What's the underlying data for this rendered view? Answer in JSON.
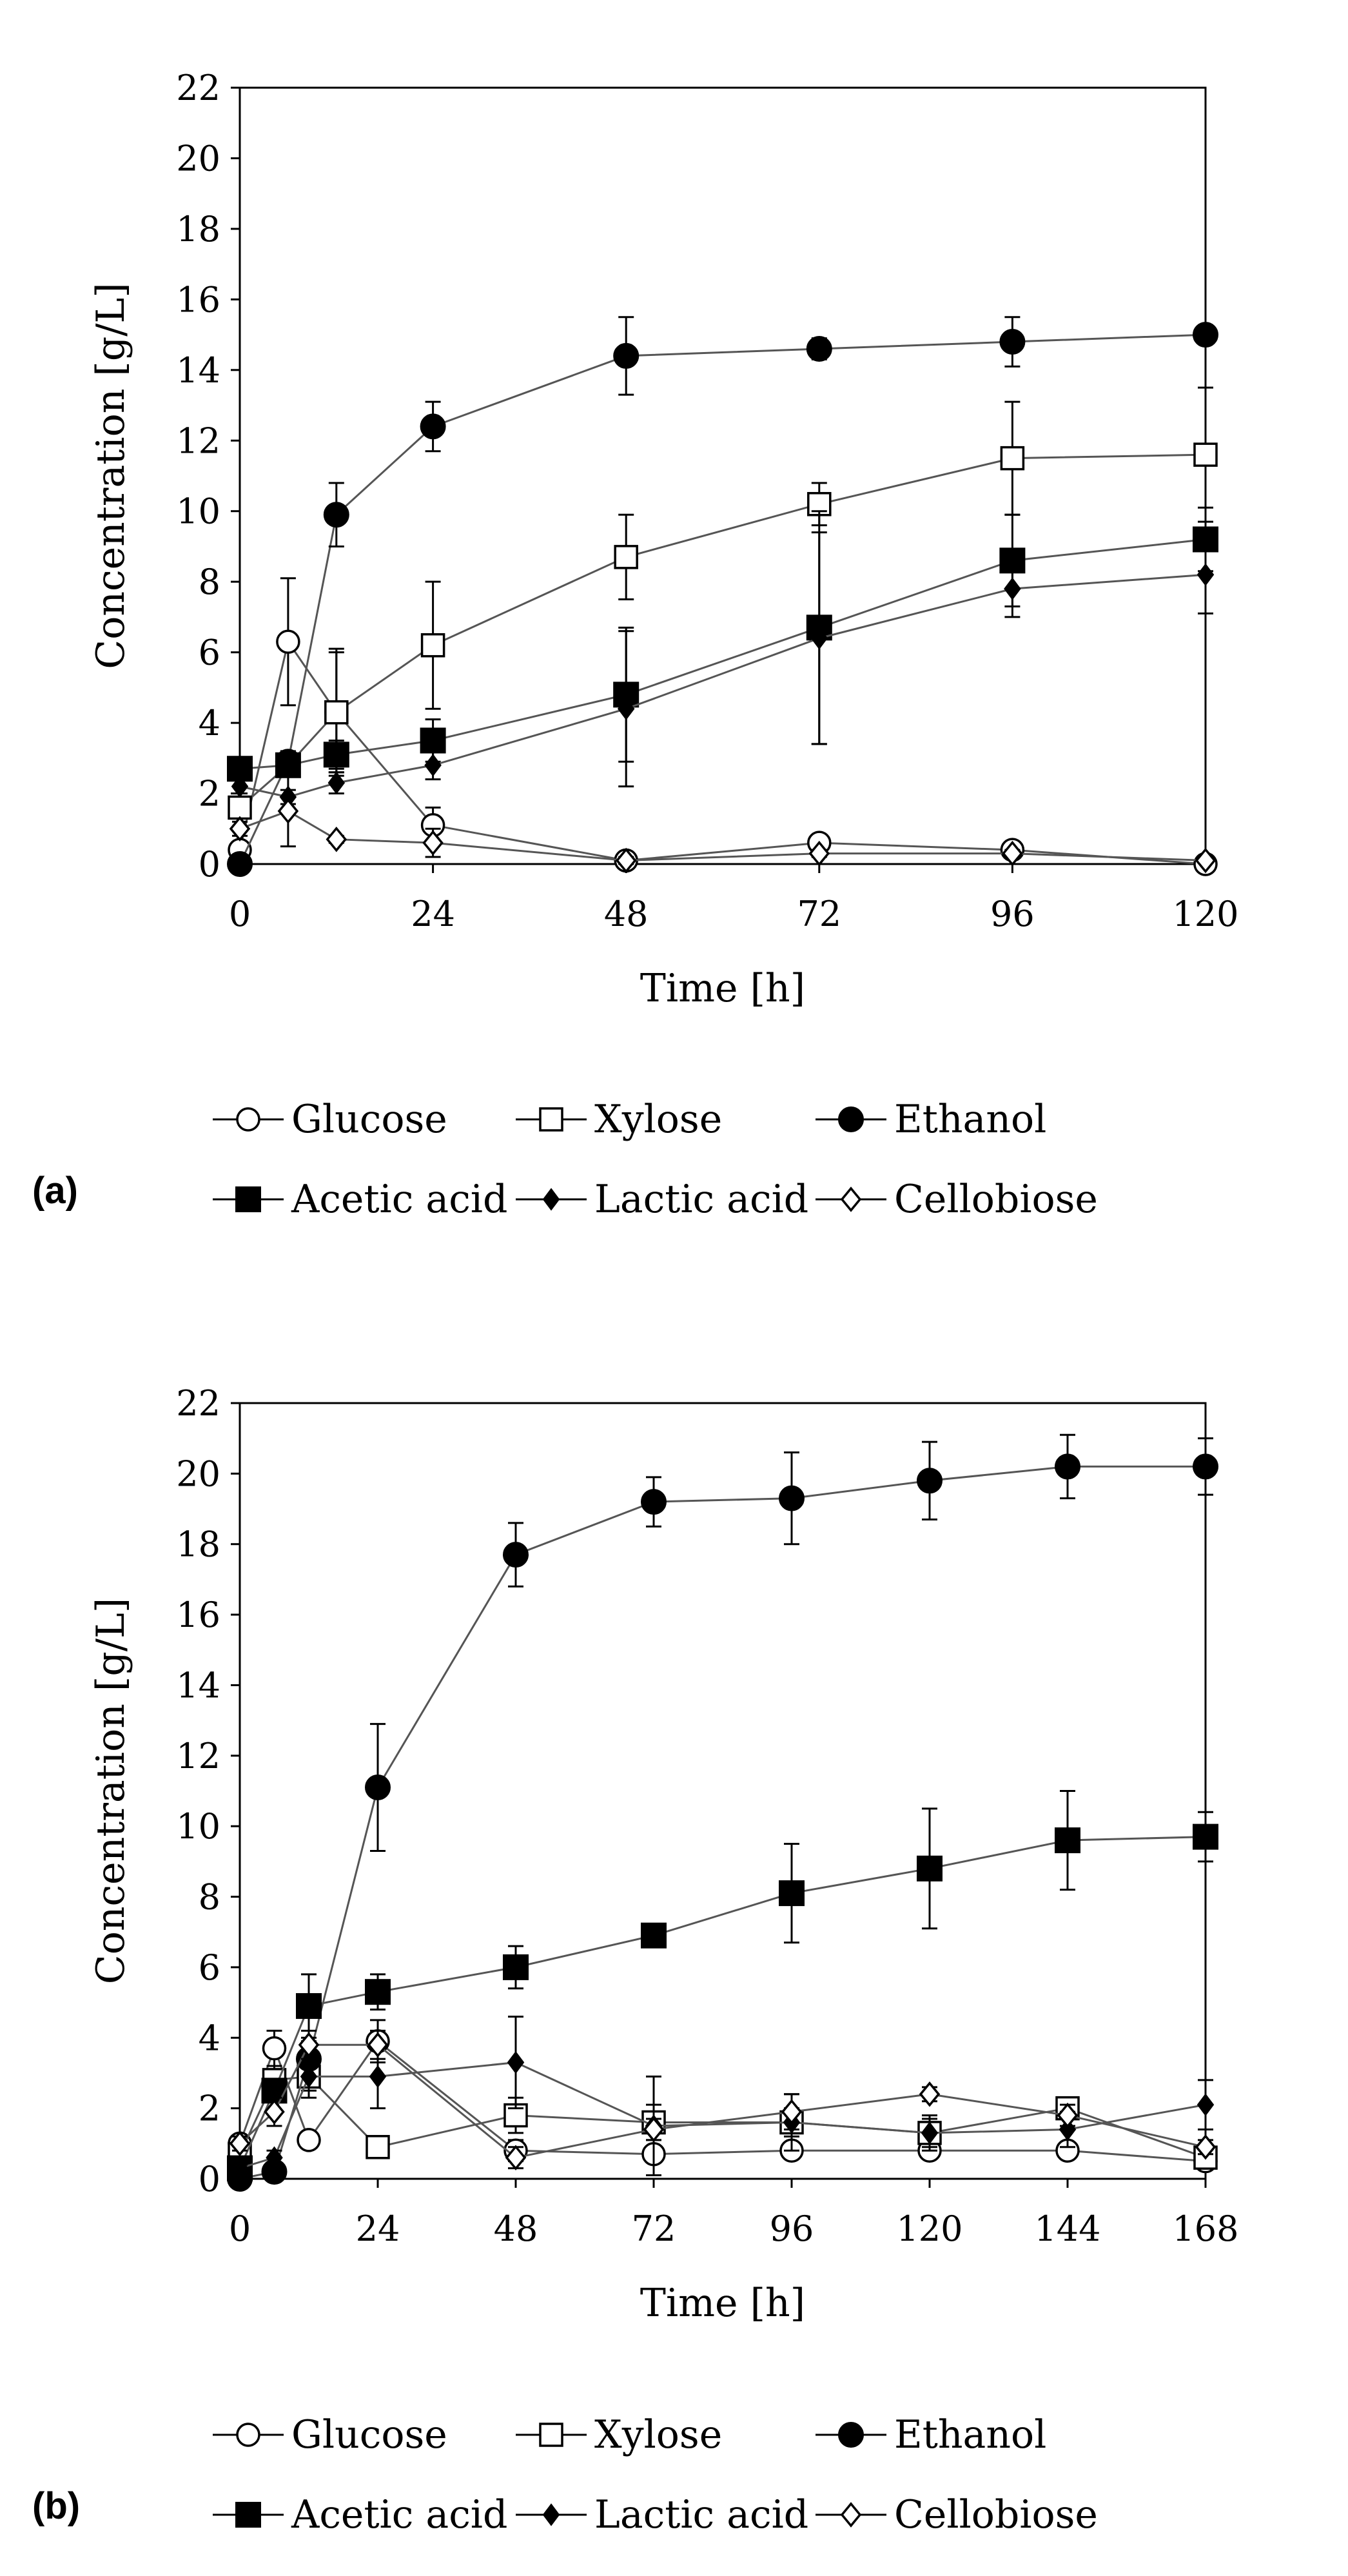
{
  "chart_data": [
    {
      "panel": "(a)",
      "type": "line",
      "xlabel": "Time [h]",
      "ylabel": "Concentration [g/L]",
      "xlim": [
        0,
        120
      ],
      "ylim": [
        0,
        22
      ],
      "xticks": [
        0,
        24,
        48,
        72,
        96,
        120
      ],
      "yticks": [
        0,
        2,
        4,
        6,
        8,
        10,
        12,
        14,
        16,
        18,
        20,
        22
      ],
      "series": [
        {
          "name": "Glucose",
          "marker": "circle-open",
          "x": [
            0,
            6,
            12,
            24,
            48,
            72,
            96,
            120
          ],
          "y": [
            0.4,
            6.3,
            4.3,
            1.1,
            0.1,
            0.6,
            0.4,
            0.0
          ],
          "err": [
            0.1,
            1.8,
            1.8,
            0.5,
            0.1,
            0.1,
            0.1,
            0.0
          ]
        },
        {
          "name": "Xylose",
          "marker": "square-open",
          "x": [
            0,
            6,
            12,
            24,
            48,
            72,
            96,
            120
          ],
          "y": [
            1.6,
            2.8,
            4.3,
            6.2,
            8.7,
            10.2,
            11.5,
            11.6
          ],
          "err": [
            0.3,
            0.3,
            1.7,
            1.8,
            1.2,
            0.6,
            1.6,
            1.9
          ]
        },
        {
          "name": "Ethanol",
          "marker": "circle-filled",
          "x": [
            0,
            6,
            12,
            24,
            48,
            72,
            96,
            120
          ],
          "y": [
            0.0,
            2.9,
            9.9,
            12.4,
            14.4,
            14.6,
            14.8,
            15.0
          ],
          "err": [
            0.0,
            0.3,
            0.9,
            0.7,
            1.1,
            0.3,
            0.7,
            0.2
          ]
        },
        {
          "name": "Acetic acid",
          "marker": "square-filled",
          "x": [
            0,
            6,
            12,
            24,
            48,
            72,
            96,
            120
          ],
          "y": [
            2.7,
            2.8,
            3.1,
            3.5,
            4.8,
            6.7,
            8.6,
            9.2
          ],
          "err": [
            0.2,
            0.2,
            0.4,
            0.6,
            1.9,
            3.3,
            1.3,
            0.9
          ]
        },
        {
          "name": "Lactic acid",
          "marker": "diamond-filled",
          "x": [
            0,
            6,
            12,
            24,
            48,
            72,
            96,
            120
          ],
          "y": [
            2.2,
            1.9,
            2.3,
            2.8,
            4.4,
            6.4,
            7.8,
            8.2
          ],
          "err": [
            0.2,
            0.2,
            0.3,
            0.4,
            2.2,
            3.0,
            0.8,
            1.1
          ]
        },
        {
          "name": "Cellobiose",
          "marker": "diamond-open",
          "x": [
            0,
            6,
            12,
            24,
            48,
            72,
            96,
            120
          ],
          "y": [
            1.0,
            1.5,
            0.7,
            0.6,
            0.1,
            0.3,
            0.3,
            0.1
          ],
          "err": [
            0.2,
            1.0,
            0.1,
            0.4,
            0.1,
            0.1,
            0.1,
            0.0
          ]
        }
      ]
    },
    {
      "panel": "(b)",
      "type": "line",
      "xlabel": "Time [h]",
      "ylabel": "Concentration [g/L]",
      "xlim": [
        0,
        168
      ],
      "ylim": [
        0,
        22
      ],
      "xticks": [
        0,
        24,
        48,
        72,
        96,
        120,
        144,
        168
      ],
      "yticks": [
        0,
        2,
        4,
        6,
        8,
        10,
        12,
        14,
        16,
        18,
        20,
        22
      ],
      "series": [
        {
          "name": "Glucose",
          "marker": "circle-open",
          "x": [
            0,
            6,
            12,
            24,
            48,
            72,
            96,
            120,
            144,
            168
          ],
          "y": [
            1.0,
            3.7,
            1.1,
            3.9,
            0.8,
            0.7,
            0.8,
            0.8,
            0.8,
            0.5
          ],
          "err": [
            0.2,
            0.5,
            0.2,
            0.6,
            0.3,
            0.2,
            0.2,
            0.2,
            0.2,
            0.1
          ]
        },
        {
          "name": "Xylose",
          "marker": "square-open",
          "x": [
            0,
            6,
            12,
            24,
            48,
            72,
            96,
            120,
            144,
            168
          ],
          "y": [
            0.7,
            2.8,
            2.9,
            0.9,
            1.8,
            1.6,
            1.6,
            1.3,
            2.0,
            0.6
          ],
          "err": [
            0.2,
            0.4,
            0.4,
            0.2,
            0.5,
            0.5,
            0.4,
            0.4,
            0.3,
            0.2
          ]
        },
        {
          "name": "Ethanol",
          "marker": "circle-filled",
          "x": [
            0,
            6,
            12,
            24,
            48,
            72,
            96,
            120,
            144,
            168
          ],
          "y": [
            0.0,
            0.2,
            3.4,
            11.1,
            17.7,
            19.2,
            19.3,
            19.8,
            20.2,
            20.2
          ],
          "err": [
            0.0,
            0.1,
            0.5,
            1.8,
            0.9,
            0.7,
            1.3,
            1.1,
            0.9,
            0.8
          ]
        },
        {
          "name": "Acetic acid",
          "marker": "square-filled",
          "x": [
            0,
            6,
            12,
            24,
            48,
            72,
            96,
            120,
            144,
            168
          ],
          "y": [
            0.3,
            2.5,
            4.9,
            5.3,
            6.0,
            6.9,
            8.1,
            8.8,
            9.6,
            9.7
          ],
          "err": [
            0.1,
            0.3,
            0.9,
            0.5,
            0.6,
            0.3,
            1.4,
            1.7,
            1.4,
            0.7
          ]
        },
        {
          "name": "Lactic acid",
          "marker": "diamond-filled",
          "x": [
            0,
            6,
            12,
            24,
            48,
            72,
            96,
            120,
            144,
            168
          ],
          "y": [
            0.3,
            0.6,
            2.9,
            2.9,
            3.3,
            1.5,
            1.6,
            1.3,
            1.4,
            2.1
          ],
          "err": [
            0.1,
            0.2,
            0.6,
            0.9,
            1.3,
            1.4,
            0.8,
            0.5,
            0.5,
            0.7
          ]
        },
        {
          "name": "Cellobiose",
          "marker": "diamond-open",
          "x": [
            0,
            6,
            12,
            24,
            48,
            72,
            96,
            120,
            144,
            168
          ],
          "y": [
            1.0,
            1.9,
            3.8,
            3.8,
            0.6,
            1.4,
            1.9,
            2.4,
            1.8,
            0.9
          ],
          "err": [
            0.2,
            0.4,
            0.4,
            0.4,
            0.3,
            0.3,
            0.5,
            0.2,
            0.3,
            0.2
          ]
        }
      ]
    }
  ]
}
